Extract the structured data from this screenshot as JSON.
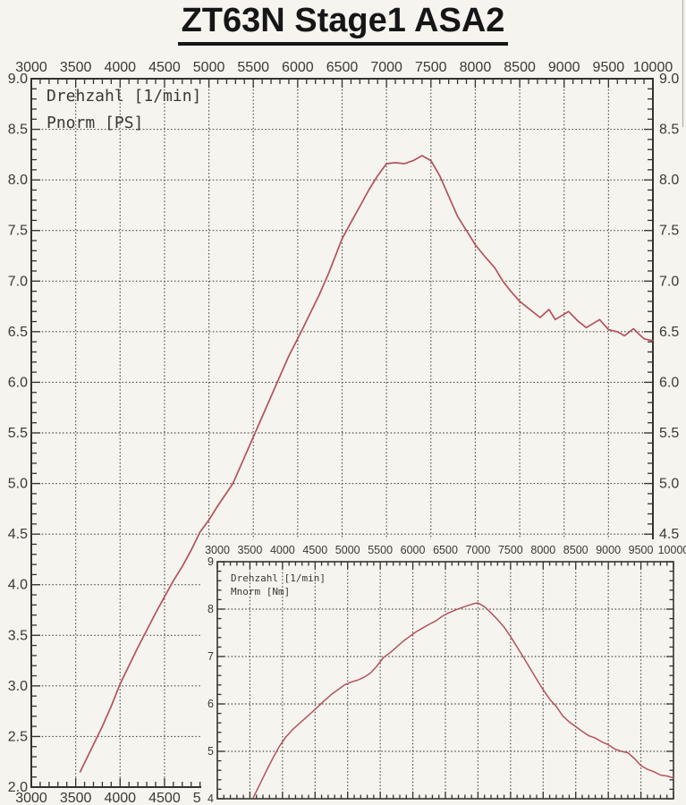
{
  "title": "ZT63N Stage1 ASA2",
  "colors": {
    "accent": "#b4525c",
    "grid": "#4d4b46",
    "axis": "#33322e",
    "text": "#3a3934",
    "paper": "#f5f4ef",
    "title": "#161616",
    "scan_artifact": "#8f8e89"
  },
  "chart_data": [
    {
      "id": "power",
      "type": "line",
      "title": "",
      "xlabel": "Drehzahl [1/min]",
      "ylabel": "Pnorm [PS]",
      "legend": [
        "Drehzahl [1/min]",
        "Pnorm [PS]"
      ],
      "legend_position": "top-left-inside",
      "grid": true,
      "xlim": [
        3000,
        10000
      ],
      "ylim": [
        2.0,
        9.0
      ],
      "x_ticks": [
        3000,
        3500,
        4000,
        4500,
        5000,
        5500,
        6000,
        6500,
        7000,
        7500,
        8000,
        8500,
        9000,
        9500,
        10000
      ],
      "x_tick_labels": [
        "3000",
        "3500",
        "4000",
        "4500",
        "5000",
        "5500",
        "6000",
        "6500",
        "7000",
        "7500",
        "8000",
        "8500",
        "9000",
        "9500",
        "10000"
      ],
      "y_ticks": [
        2.0,
        2.5,
        3.0,
        3.5,
        4.0,
        4.5,
        5.0,
        5.5,
        6.0,
        6.5,
        7.0,
        7.5,
        8.0,
        8.5,
        9.0
      ],
      "y_tick_labels": [
        "2.0",
        "2.5",
        "3.0",
        "3.5",
        "4.0",
        "4.5",
        "5.0",
        "5.5",
        "6.0",
        "6.5",
        "7.0",
        "7.5",
        "8.0",
        "8.5",
        "9.0"
      ],
      "series": [
        {
          "name": "Pnorm [PS]",
          "x": [
            3550,
            3600,
            3700,
            3800,
            3900,
            4000,
            4100,
            4200,
            4300,
            4400,
            4500,
            4600,
            4700,
            4800,
            4900,
            5000,
            5100,
            5270,
            5400,
            5520,
            5650,
            5770,
            5900,
            6040,
            6150,
            6240,
            6350,
            6500,
            6600,
            6700,
            6800,
            6900,
            7000,
            7100,
            7200,
            7300,
            7400,
            7500,
            7600,
            7700,
            7800,
            7900,
            8000,
            8100,
            8220,
            8310,
            8400,
            8500,
            8600,
            8730,
            8830,
            8900,
            9050,
            9150,
            9250,
            9400,
            9500,
            9600,
            9680,
            9780,
            9850,
            9900,
            10000
          ],
          "y": [
            2.15,
            2.24,
            2.42,
            2.6,
            2.8,
            3.02,
            3.2,
            3.38,
            3.55,
            3.72,
            3.88,
            4.04,
            4.18,
            4.34,
            4.52,
            4.64,
            4.78,
            5.0,
            5.26,
            5.5,
            5.76,
            6.0,
            6.26,
            6.5,
            6.7,
            6.86,
            7.08,
            7.42,
            7.58,
            7.74,
            7.9,
            8.04,
            8.16,
            8.17,
            8.16,
            8.19,
            8.24,
            8.19,
            8.04,
            7.84,
            7.64,
            7.5,
            7.36,
            7.25,
            7.13,
            7.0,
            6.9,
            6.8,
            6.73,
            6.64,
            6.72,
            6.62,
            6.7,
            6.61,
            6.54,
            6.62,
            6.52,
            6.5,
            6.46,
            6.53,
            6.47,
            6.43,
            6.41
          ]
        }
      ]
    },
    {
      "id": "torque",
      "type": "line",
      "title": "",
      "xlabel": "Drehzahl [1/min]",
      "ylabel": "Mnorm [Nm]",
      "legend": [
        "Drehzahl [1/min]",
        "Mnorm [Nm]"
      ],
      "legend_position": "top-left-inside",
      "grid": true,
      "xlim": [
        3000,
        10000
      ],
      "ylim": [
        4,
        9
      ],
      "x_ticks": [
        3000,
        3500,
        4000,
        4500,
        5000,
        5500,
        6000,
        6500,
        7000,
        7500,
        8000,
        8500,
        9000,
        9500,
        10000
      ],
      "x_tick_labels": [
        "3000",
        "3500",
        "4000",
        "4500",
        "5000",
        "5500",
        "6000",
        "6500",
        "7000",
        "7500",
        "8000",
        "8500",
        "9000",
        "9500",
        "10000"
      ],
      "y_ticks": [
        4,
        5,
        6,
        7,
        8,
        9
      ],
      "y_tick_labels": [
        "4",
        "5",
        "6",
        "7",
        "8",
        "9"
      ],
      "series": [
        {
          "name": "Mnorm [Nm]",
          "x": [
            3550,
            3650,
            3750,
            3850,
            3950,
            4050,
            4150,
            4250,
            4350,
            4450,
            4550,
            4650,
            4750,
            4850,
            4950,
            5050,
            5150,
            5250,
            5350,
            5450,
            5550,
            5650,
            5750,
            5850,
            5950,
            6050,
            6150,
            6250,
            6350,
            6450,
            6550,
            6650,
            6750,
            6850,
            6950,
            7000,
            7100,
            7200,
            7300,
            7400,
            7500,
            7600,
            7700,
            7800,
            7900,
            8000,
            8100,
            8200,
            8300,
            8400,
            8500,
            8600,
            8700,
            8800,
            8900,
            9000,
            9100,
            9200,
            9300,
            9400,
            9500,
            9600,
            9700,
            9800,
            9900,
            10000
          ],
          "y": [
            4.02,
            4.3,
            4.58,
            4.85,
            5.1,
            5.3,
            5.45,
            5.58,
            5.7,
            5.82,
            5.95,
            6.08,
            6.2,
            6.3,
            6.4,
            6.46,
            6.5,
            6.56,
            6.65,
            6.8,
            6.98,
            7.08,
            7.2,
            7.32,
            7.42,
            7.52,
            7.6,
            7.68,
            7.75,
            7.85,
            7.92,
            7.98,
            8.03,
            8.08,
            8.12,
            8.13,
            8.05,
            7.92,
            7.78,
            7.62,
            7.42,
            7.2,
            6.98,
            6.75,
            6.52,
            6.3,
            6.1,
            5.95,
            5.75,
            5.62,
            5.52,
            5.42,
            5.33,
            5.28,
            5.2,
            5.14,
            5.05,
            5.0,
            4.97,
            4.85,
            4.7,
            4.62,
            4.57,
            4.5,
            4.48,
            4.44
          ]
        }
      ]
    }
  ]
}
